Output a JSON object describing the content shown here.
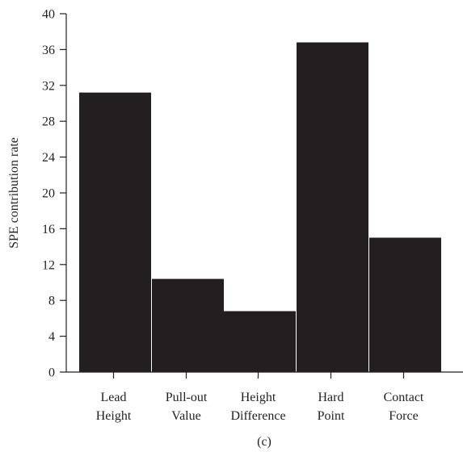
{
  "chart_data": {
    "type": "bar",
    "title": "",
    "xlabel": "",
    "ylabel": "SPE contribution rate",
    "caption": "(c)",
    "categories": [
      [
        "Lead",
        "Height"
      ],
      [
        "Pull-out",
        "Value"
      ],
      [
        "Height",
        "Difference"
      ],
      [
        "Hard",
        "Point"
      ],
      [
        "Contact",
        "Force"
      ]
    ],
    "values": [
      31.2,
      10.4,
      6.8,
      36.8,
      15.0
    ],
    "ylim": [
      0,
      40
    ],
    "yticks": [
      0,
      4,
      8,
      12,
      16,
      20,
      24,
      28,
      32,
      36,
      40
    ],
    "grid": false,
    "bar_color": "#231f20",
    "axis_color": "#231f20"
  }
}
